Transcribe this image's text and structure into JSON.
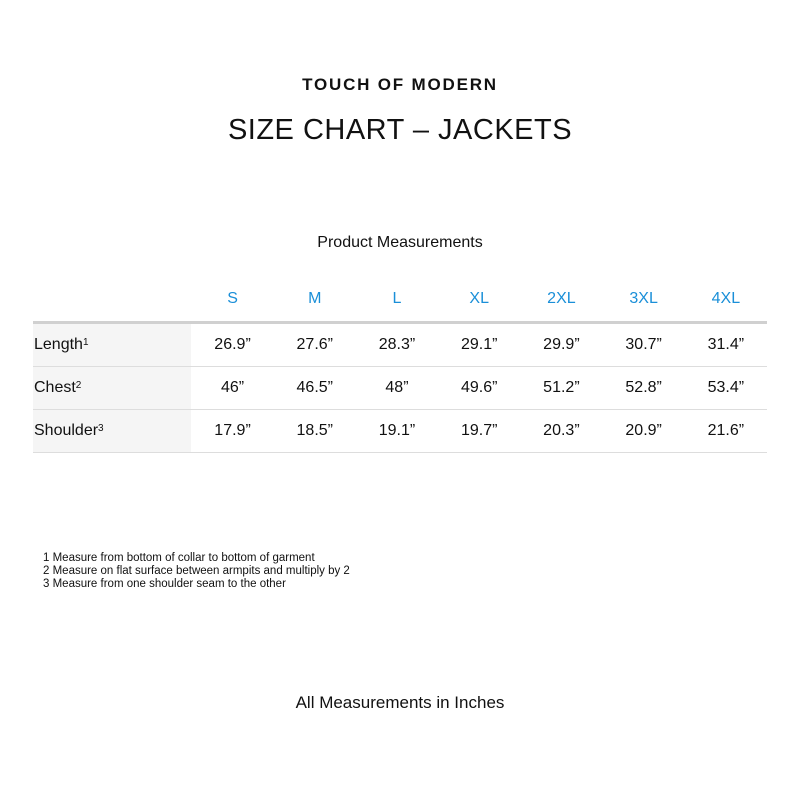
{
  "brand": "TOUCH OF MODERN",
  "title": "SIZE CHART – JACKETS",
  "subtitle": "Product Measurements",
  "sizes": [
    "S",
    "M",
    "L",
    "XL",
    "2XL",
    "3XL",
    "4XL"
  ],
  "rows": [
    {
      "label": "Length",
      "sup": "1",
      "values": [
        "26.9”",
        "27.6”",
        "28.3”",
        "29.1”",
        "29.9”",
        "30.7”",
        "31.4”"
      ]
    },
    {
      "label": "Chest",
      "sup": "2",
      "values": [
        "46”",
        "46.5”",
        "48”",
        "49.6”",
        "51.2”",
        "52.8”",
        "53.4”"
      ]
    },
    {
      "label": "Shoulder",
      "sup": "3",
      "values": [
        "17.9”",
        "18.5”",
        "19.1”",
        "19.7”",
        "20.3”",
        "20.9”",
        "21.6”"
      ]
    }
  ],
  "notes": [
    "1 Measure from bottom of collar to bottom of garment",
    "2 Measure on flat surface between armpits and multiply by 2",
    "3 Measure from one shoulder seam to the other"
  ],
  "footer": "All Measurements in Inches",
  "colors": {
    "size_header": "#1a8fd8",
    "label_bg": "#f5f5f5"
  }
}
